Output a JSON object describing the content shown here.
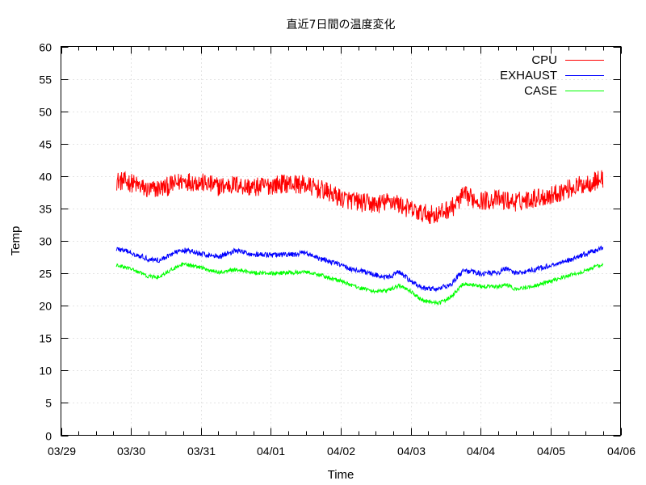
{
  "chart_data": {
    "type": "line",
    "title": "直近7日間の温度変化",
    "xlabel": "Time",
    "ylabel": "Temp",
    "ylim": [
      0,
      60
    ],
    "yticks": [
      0,
      5,
      10,
      15,
      20,
      25,
      30,
      35,
      40,
      45,
      50,
      55,
      60
    ],
    "xlim": [
      "03/29 00:00",
      "04/06 00:00"
    ],
    "xtick_labels": [
      "03/29",
      "03/30",
      "03/31",
      "04/01",
      "04/02",
      "04/03",
      "04/04",
      "04/05",
      "04/06"
    ],
    "grid": true,
    "legend_position": "top-right",
    "series": [
      {
        "name": "CPU",
        "color": "#ff0000",
        "noise": 1.5,
        "points": [
          [
            "03/29 19:00",
            39.3
          ],
          [
            "03/30 00:00",
            39.0
          ],
          [
            "03/30 06:00",
            37.8
          ],
          [
            "03/30 12:00",
            38.3
          ],
          [
            "03/30 18:00",
            39.3
          ],
          [
            "03/31 00:00",
            39.0
          ],
          [
            "03/31 06:00",
            38.4
          ],
          [
            "03/31 12:00",
            38.7
          ],
          [
            "03/31 18:00",
            38.2
          ],
          [
            "04/01 00:00",
            38.6
          ],
          [
            "04/01 06:00",
            38.9
          ],
          [
            "04/01 12:00",
            38.6
          ],
          [
            "04/01 18:00",
            37.8
          ],
          [
            "04/02 00:00",
            36.6
          ],
          [
            "04/02 06:00",
            36.0
          ],
          [
            "04/02 12:00",
            35.6
          ],
          [
            "04/02 18:00",
            36.2
          ],
          [
            "04/02 21:00",
            35.4
          ],
          [
            "04/03 03:00",
            34.3
          ],
          [
            "04/03 09:00",
            34.0
          ],
          [
            "04/03 15:00",
            35.4
          ],
          [
            "04/03 18:00",
            37.0
          ],
          [
            "04/04 00:00",
            36.2
          ],
          [
            "04/04 06:00",
            36.4
          ],
          [
            "04/04 12:00",
            36.0
          ],
          [
            "04/04 18:00",
            36.6
          ],
          [
            "04/05 00:00",
            37.0
          ],
          [
            "04/05 06:00",
            38.0
          ],
          [
            "04/05 12:00",
            38.8
          ],
          [
            "04/05 18:00",
            39.6
          ]
        ]
      },
      {
        "name": "EXHAUST",
        "color": "#0000ff",
        "noise": 0.4,
        "points": [
          [
            "03/29 19:00",
            28.8
          ],
          [
            "03/30 00:00",
            28.2
          ],
          [
            "03/30 06:00",
            27.2
          ],
          [
            "03/30 10:00",
            27.0
          ],
          [
            "03/30 14:00",
            28.0
          ],
          [
            "03/30 18:00",
            28.6
          ],
          [
            "03/31 00:00",
            28.0
          ],
          [
            "03/31 06:00",
            27.6
          ],
          [
            "03/31 12:00",
            28.5
          ],
          [
            "03/31 18:00",
            27.9
          ],
          [
            "04/01 00:00",
            27.8
          ],
          [
            "04/01 08:00",
            27.9
          ],
          [
            "04/01 12:00",
            28.2
          ],
          [
            "04/01 16:00",
            27.3
          ],
          [
            "04/01 22:00",
            26.6
          ],
          [
            "04/02 04:00",
            25.6
          ],
          [
            "04/02 10:00",
            25.0
          ],
          [
            "04/02 16:00",
            24.3
          ],
          [
            "04/02 20:00",
            25.2
          ],
          [
            "04/03 00:00",
            23.8
          ],
          [
            "04/03 04:00",
            22.7
          ],
          [
            "04/03 10:00",
            22.6
          ],
          [
            "04/03 14:00",
            23.4
          ],
          [
            "04/03 18:00",
            25.4
          ],
          [
            "04/04 00:00",
            25.0
          ],
          [
            "04/04 06:00",
            25.1
          ],
          [
            "04/04 09:00",
            25.8
          ],
          [
            "04/04 12:00",
            25.0
          ],
          [
            "04/04 18:00",
            25.5
          ],
          [
            "04/05 00:00",
            26.2
          ],
          [
            "04/05 06:00",
            27.0
          ],
          [
            "04/05 12:00",
            28.0
          ],
          [
            "04/05 18:00",
            28.9
          ]
        ]
      },
      {
        "name": "CASE",
        "color": "#00ff00",
        "noise": 0.3,
        "points": [
          [
            "03/29 19:00",
            26.2
          ],
          [
            "03/30 00:00",
            25.7
          ],
          [
            "03/30 06:00",
            24.5
          ],
          [
            "03/30 10:00",
            24.4
          ],
          [
            "03/30 14:00",
            25.6
          ],
          [
            "03/30 18:00",
            26.4
          ],
          [
            "03/31 00:00",
            25.9
          ],
          [
            "03/31 06:00",
            25.1
          ],
          [
            "03/31 12:00",
            25.6
          ],
          [
            "03/31 18:00",
            25.1
          ],
          [
            "04/01 00:00",
            25.0
          ],
          [
            "04/01 08:00",
            25.1
          ],
          [
            "04/01 12:00",
            25.3
          ],
          [
            "04/01 18:00",
            24.6
          ],
          [
            "04/02 00:00",
            23.8
          ],
          [
            "04/02 06:00",
            22.8
          ],
          [
            "04/02 12:00",
            22.2
          ],
          [
            "04/02 16:00",
            22.3
          ],
          [
            "04/02 20:00",
            23.1
          ],
          [
            "04/03 00:00",
            22.2
          ],
          [
            "04/03 04:00",
            20.8
          ],
          [
            "04/03 10:00",
            20.4
          ],
          [
            "04/03 14:00",
            21.4
          ],
          [
            "04/03 18:00",
            23.4
          ],
          [
            "04/04 00:00",
            23.0
          ],
          [
            "04/04 06:00",
            22.9
          ],
          [
            "04/04 09:00",
            23.2
          ],
          [
            "04/04 12:00",
            22.5
          ],
          [
            "04/04 18:00",
            23.0
          ],
          [
            "04/05 00:00",
            23.8
          ],
          [
            "04/05 06:00",
            24.6
          ],
          [
            "04/05 12:00",
            25.4
          ],
          [
            "04/05 18:00",
            26.4
          ]
        ]
      }
    ]
  }
}
